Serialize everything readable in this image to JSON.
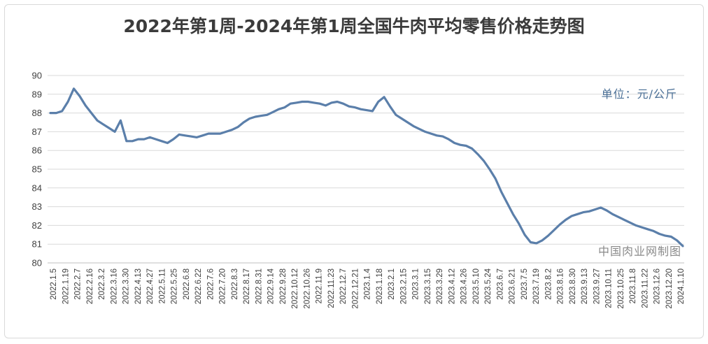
{
  "chart_data": {
    "type": "line",
    "title": "2022年第1周-2024年第1周全国牛肉平均零售价格走势图",
    "unit_label": "单位：元/公斤",
    "source_label": "中国肉业网制图",
    "ylim": [
      80,
      90
    ],
    "yticks": [
      80,
      81,
      82,
      83,
      84,
      85,
      86,
      87,
      88,
      89,
      90
    ],
    "grid": true,
    "legend": "none",
    "line_color": "#5b7faa",
    "x_labels": [
      "2022.1.5",
      "2022.1.19",
      "2022.2.7",
      "2022.2.16",
      "2022.3.2",
      "2022.3.16",
      "2022.3.30",
      "2022.4.13",
      "2022.4.27",
      "2022.5.11",
      "2022.5.25",
      "2022.6.8",
      "2022.6.22",
      "2022.7.6",
      "2022.7.20",
      "2022.8.3",
      "2022.8.17",
      "2022.8.31",
      "2022.9.14",
      "2022.9.28",
      "2022.10.12",
      "2022.10.26",
      "2022.11.9",
      "2022.11.23",
      "2022.12.7",
      "2022.12.21",
      "2023.1.4",
      "2023.1.18",
      "2023.2.1",
      "2023.2.15",
      "2023.3.1",
      "2023.3.15",
      "2023.3.29",
      "2023.4.12",
      "2023.4.26",
      "2023.5.10",
      "2023.5.24",
      "2023.6.7",
      "2023.6.21",
      "2023.7.5",
      "2023.7.19",
      "2023.8.2",
      "2023.8.16",
      "2023.8.30",
      "2023.9.13",
      "2023.9.27",
      "2023.10.11",
      "2023.10.25",
      "2023.11.8",
      "2023.11.22",
      "2023.12.6",
      "2023.12.20",
      "2024.1.10"
    ],
    "values": [
      88.0,
      88.0,
      88.1,
      88.6,
      89.3,
      88.9,
      88.4,
      88.0,
      87.6,
      87.4,
      87.2,
      87.0,
      87.6,
      86.5,
      86.5,
      86.6,
      86.6,
      86.7,
      86.6,
      86.5,
      86.4,
      86.6,
      86.85,
      86.8,
      86.75,
      86.7,
      86.8,
      86.9,
      86.9,
      86.9,
      87.0,
      87.1,
      87.25,
      87.5,
      87.7,
      87.8,
      87.85,
      87.9,
      88.05,
      88.2,
      88.3,
      88.5,
      88.55,
      88.6,
      88.6,
      88.55,
      88.5,
      88.4,
      88.55,
      88.6,
      88.5,
      88.35,
      88.3,
      88.2,
      88.15,
      88.1,
      88.6,
      88.85,
      88.35,
      87.9,
      87.7,
      87.5,
      87.3,
      87.15,
      87.0,
      86.9,
      86.8,
      86.75,
      86.6,
      86.4,
      86.3,
      86.25,
      86.1,
      85.8,
      85.45,
      85.0,
      84.5,
      83.8,
      83.2,
      82.6,
      82.1,
      81.5,
      81.1,
      81.05,
      81.2,
      81.45,
      81.75,
      82.05,
      82.3,
      82.5,
      82.6,
      82.7,
      82.75,
      82.85,
      82.95,
      82.8,
      82.6,
      82.45,
      82.3,
      82.15,
      82.0,
      81.9,
      81.8,
      81.7,
      81.55,
      81.45,
      81.4,
      81.2,
      80.9
    ]
  }
}
